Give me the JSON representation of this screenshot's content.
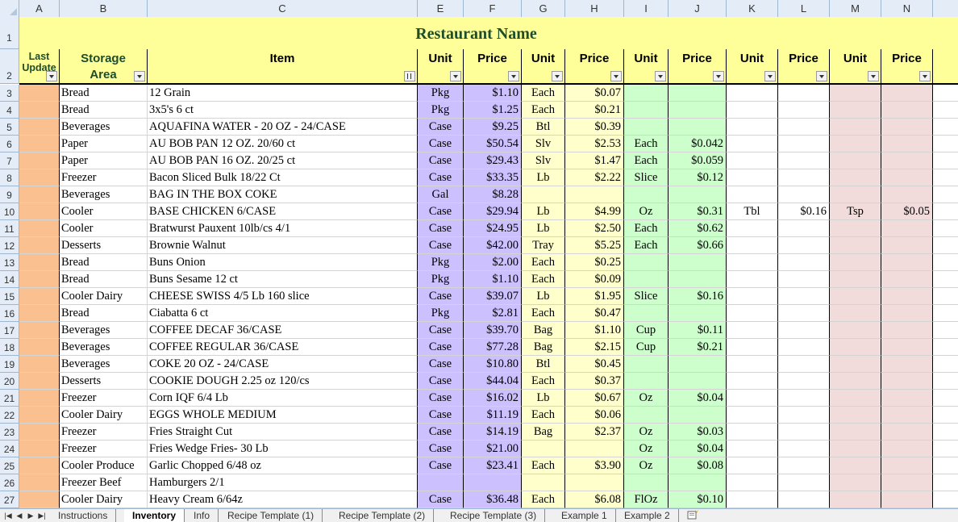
{
  "columns": [
    "A",
    "B",
    "C",
    "E",
    "F",
    "G",
    "H",
    "I",
    "J",
    "K",
    "L",
    "M",
    "N"
  ],
  "title": "Restaurant Name",
  "header_row_number": "2",
  "title_row_number": "1",
  "headers": {
    "last_update": "Last Update",
    "storage_area": "Storage Area",
    "item": "Item",
    "unit": "Unit",
    "price": "Price"
  },
  "rows": [
    {
      "n": "3",
      "area": "Bread",
      "item": "12 Grain",
      "e": "Pkg",
      "f": "$1.10",
      "g": "Each",
      "h": "$0.07",
      "i": "",
      "j": "",
      "k": "",
      "l": "",
      "m": "",
      "o": ""
    },
    {
      "n": "4",
      "area": "Bread",
      "item": "3x5's   6 ct",
      "e": "Pkg",
      "f": "$1.25",
      "g": "Each",
      "h": "$0.21",
      "i": "",
      "j": "",
      "k": "",
      "l": "",
      "m": "",
      "o": ""
    },
    {
      "n": "5",
      "area": "Beverages",
      "item": "AQUAFINA WATER - 20 OZ - 24/CASE",
      "e": "Case",
      "f": "$9.25",
      "g": "Btl",
      "h": "$0.39",
      "i": "",
      "j": "",
      "k": "",
      "l": "",
      "m": "",
      "o": ""
    },
    {
      "n": "6",
      "area": "Paper",
      "item": "AU BOB PAN 12 OZ.  20/60 ct",
      "e": "Case",
      "f": "$50.54",
      "g": "Slv",
      "h": "$2.53",
      "i": "Each",
      "j": "$0.042",
      "k": "",
      "l": "",
      "m": "",
      "o": ""
    },
    {
      "n": "7",
      "area": "Paper",
      "item": "AU BOB PAN 16 OZ.  20/25 ct",
      "e": "Case",
      "f": "$29.43",
      "g": "Slv",
      "h": "$1.47",
      "i": "Each",
      "j": "$0.059",
      "k": "",
      "l": "",
      "m": "",
      "o": ""
    },
    {
      "n": "8",
      "area": "Freezer",
      "item": "Bacon Sliced Bulk 18/22 Ct",
      "e": "Case",
      "f": "$33.35",
      "g": "Lb",
      "h": "$2.22",
      "i": "Slice",
      "j": "$0.12",
      "k": "",
      "l": "",
      "m": "",
      "o": ""
    },
    {
      "n": "9",
      "area": "Beverages",
      "item": "BAG IN THE BOX COKE",
      "e": "Gal",
      "f": "$8.28",
      "g": "",
      "h": "",
      "i": "",
      "j": "",
      "k": "",
      "l": "",
      "m": "",
      "o": ""
    },
    {
      "n": "10",
      "area": "Cooler",
      "item": "BASE CHICKEN 6/CASE",
      "e": "Case",
      "f": "$29.94",
      "g": "Lb",
      "h": "$4.99",
      "i": "Oz",
      "j": "$0.31",
      "k": "Tbl",
      "l": "$0.16",
      "m": "Tsp",
      "o": "$0.05"
    },
    {
      "n": "11",
      "area": "Cooler",
      "item": "Bratwurst Pauxent 10lb/cs  4/1",
      "e": "Case",
      "f": "$24.95",
      "g": "Lb",
      "h": "$2.50",
      "i": "Each",
      "j": "$0.62",
      "k": "",
      "l": "",
      "m": "",
      "o": ""
    },
    {
      "n": "12",
      "area": "Desserts",
      "item": "Brownie Walnut",
      "e": "Case",
      "f": "$42.00",
      "g": "Tray",
      "h": "$5.25",
      "i": "Each",
      "j": "$0.66",
      "k": "",
      "l": "",
      "m": "",
      "o": ""
    },
    {
      "n": "13",
      "area": "Bread",
      "item": "Buns Onion",
      "e": "Pkg",
      "f": "$2.00",
      "g": "Each",
      "h": "$0.25",
      "i": "",
      "j": "",
      "k": "",
      "l": "",
      "m": "",
      "o": ""
    },
    {
      "n": "14",
      "area": "Bread",
      "item": "Buns Sesame 12 ct",
      "e": "Pkg",
      "f": "$1.10",
      "g": "Each",
      "h": "$0.09",
      "i": "",
      "j": "",
      "k": "",
      "l": "",
      "m": "",
      "o": ""
    },
    {
      "n": "15",
      "area": "Cooler Dairy",
      "item": "CHEESE SWISS 4/5 Lb  160 slice",
      "e": "Case",
      "f": "$39.07",
      "g": "Lb",
      "h": "$1.95",
      "i": "Slice",
      "j": "$0.16",
      "k": "",
      "l": "",
      "m": "",
      "o": ""
    },
    {
      "n": "16",
      "area": "Bread",
      "item": "Ciabatta 6 ct",
      "e": "Pkg",
      "f": "$2.81",
      "g": "Each",
      "h": "$0.47",
      "i": "",
      "j": "",
      "k": "",
      "l": "",
      "m": "",
      "o": ""
    },
    {
      "n": "17",
      "area": "Beverages",
      "item": "COFFEE DECAF 36/CASE",
      "e": "Case",
      "f": "$39.70",
      "g": "Bag",
      "h": "$1.10",
      "i": "Cup",
      "j": "$0.11",
      "k": "",
      "l": "",
      "m": "",
      "o": ""
    },
    {
      "n": "18",
      "area": "Beverages",
      "item": "COFFEE REGULAR 36/CASE",
      "e": "Case",
      "f": "$77.28",
      "g": "Bag",
      "h": "$2.15",
      "i": "Cup",
      "j": "$0.21",
      "k": "",
      "l": "",
      "m": "",
      "o": ""
    },
    {
      "n": "19",
      "area": "Beverages",
      "item": "COKE 20 OZ - 24/CASE",
      "e": "Case",
      "f": "$10.80",
      "g": "Btl",
      "h": "$0.45",
      "i": "",
      "j": "",
      "k": "",
      "l": "",
      "m": "",
      "o": ""
    },
    {
      "n": "20",
      "area": "Desserts",
      "item": "COOKIE DOUGH  2.25 oz   120/cs",
      "e": "Case",
      "f": "$44.04",
      "g": "Each",
      "h": "$0.37",
      "i": "",
      "j": "",
      "k": "",
      "l": "",
      "m": "",
      "o": ""
    },
    {
      "n": "21",
      "area": "Freezer",
      "item": "Corn IQF  6/4 Lb",
      "e": "Case",
      "f": "$16.02",
      "g": "Lb",
      "h": "$0.67",
      "i": "Oz",
      "j": "$0.04",
      "k": "",
      "l": "",
      "m": "",
      "o": ""
    },
    {
      "n": "22",
      "area": "Cooler Dairy",
      "item": "EGGS WHOLE MEDIUM",
      "e": "Case",
      "f": "$11.19",
      "g": "Each",
      "h": "$0.06",
      "i": "",
      "j": "",
      "k": "",
      "l": "",
      "m": "",
      "o": ""
    },
    {
      "n": "23",
      "area": "Freezer",
      "item": "Fries Straight Cut",
      "e": "Case",
      "f": "$14.19",
      "g": "Bag",
      "h": "$2.37",
      "i": "Oz",
      "j": "$0.03",
      "k": "",
      "l": "",
      "m": "",
      "o": ""
    },
    {
      "n": "24",
      "area": "Freezer",
      "item": "Fries Wedge Fries- 30 Lb",
      "e": "Case",
      "f": "$21.00",
      "g": "",
      "h": "",
      "i": "Oz",
      "j": "$0.04",
      "k": "",
      "l": "",
      "m": "",
      "o": ""
    },
    {
      "n": "25",
      "area": "Cooler Produce",
      "item": "Garlic Chopped 6/48 oz",
      "e": "Case",
      "f": "$23.41",
      "g": "Each",
      "h": "$3.90",
      "i": "Oz",
      "j": "$0.08",
      "k": "",
      "l": "",
      "m": "",
      "o": ""
    },
    {
      "n": "26",
      "area": "Freezer Beef",
      "item": "Hamburgers 2/1",
      "e": "",
      "f": "",
      "g": "",
      "h": "",
      "i": "",
      "j": "",
      "k": "",
      "l": "",
      "m": "",
      "o": ""
    },
    {
      "n": "27",
      "area": "Cooler Dairy",
      "item": "Heavy Cream  6/64z",
      "e": "Case",
      "f": "$36.48",
      "g": "Each",
      "h": "$6.08",
      "i": "FlOz",
      "j": "$0.10",
      "k": "",
      "l": "",
      "m": "",
      "o": ""
    }
  ],
  "tabs": [
    "Instructions",
    "Inventory",
    "Info",
    "Recipe Template (1)",
    "Recipe Template (2)",
    "Recipe Template (3)",
    "Example 1",
    "Example 2"
  ],
  "active_tab": "Inventory",
  "colors": {
    "title_bg": "#ffff99",
    "col_a_bg": "#fac090",
    "unit_price_1_bg": "#ccc0ff",
    "unit_price_2_bg": "#ffffcc",
    "unit_price_3_bg": "#ccffcc",
    "unit_price_5_bg": "#f2dcdb",
    "title_text": "#1e4d2b"
  },
  "icons": [
    "first-sheet-icon",
    "prev-sheet-icon",
    "next-sheet-icon",
    "last-sheet-icon",
    "insert-sheet-icon",
    "filter-dropdown-icon",
    "sort-filter-icon"
  ]
}
